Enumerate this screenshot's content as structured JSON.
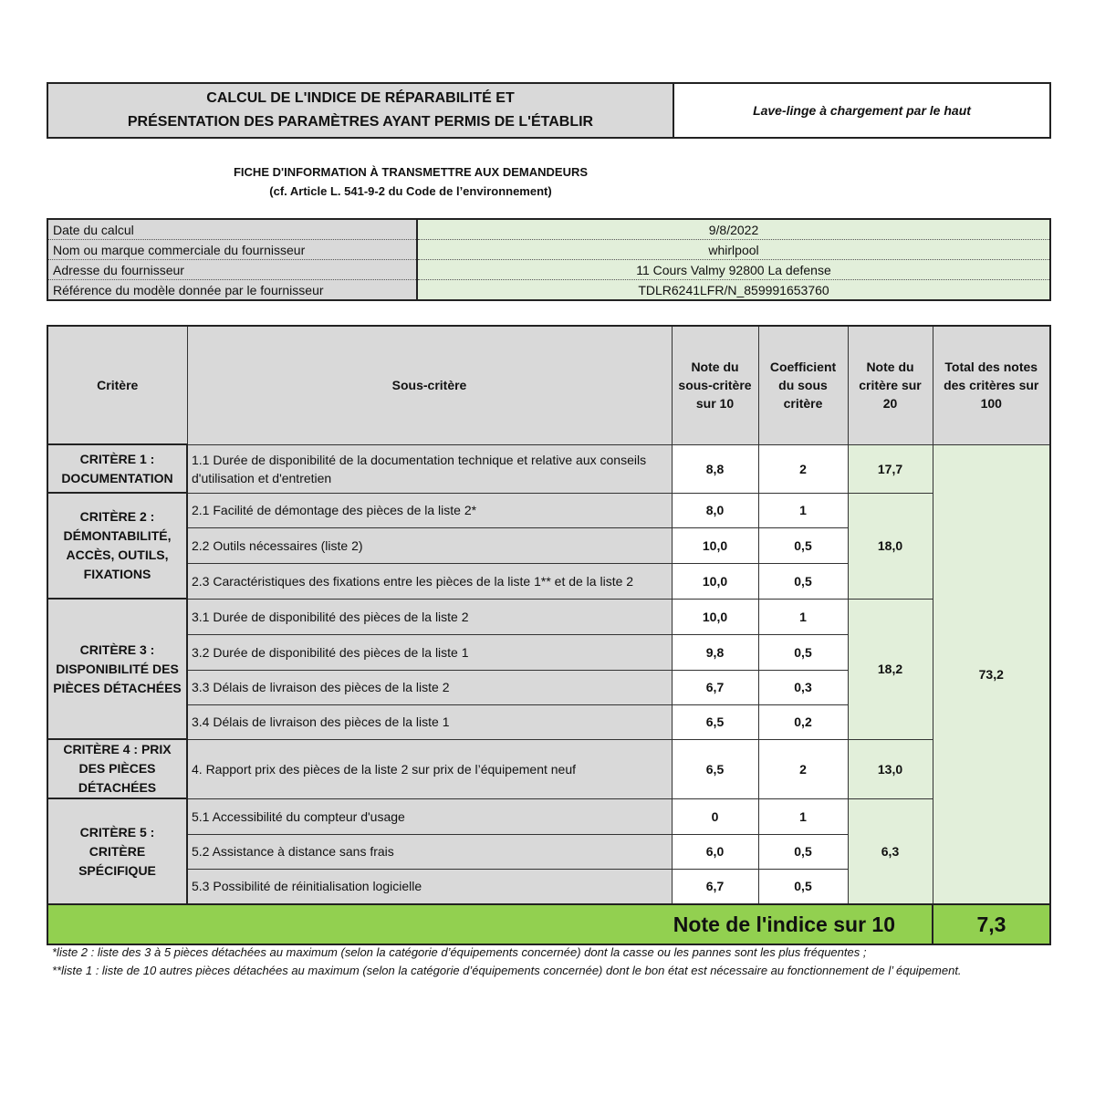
{
  "header": {
    "title_line1": "CALCUL DE L'INDICE DE RÉPARABILITÉ ET",
    "title_line2": "PRÉSENTATION DES PARAMÈTRES AYANT PERMIS DE L'ÉTABLIR",
    "product": "Lave-linge à chargement par le haut"
  },
  "subtitle": {
    "line1": "FICHE D'INFORMATION À TRANSMETTRE AUX DEMANDEURS",
    "line2": "(cf. Article L. 541-9-2 du Code de l’environnement)"
  },
  "info": [
    {
      "label": "Date du calcul",
      "value": "9/8/2022"
    },
    {
      "label": "Nom ou marque commerciale du fournisseur",
      "value": "whirlpool"
    },
    {
      "label": "Adresse du fournisseur",
      "value": "11 Cours Valmy 92800 La defense"
    },
    {
      "label": "Référence du modèle donnée par le fournisseur",
      "value": "TDLR6241LFR/N_859991653760"
    }
  ],
  "columns": [
    "Critère",
    "Sous-critère",
    "Note du sous-critère sur 10",
    "Coefficient du sous critère",
    "Note du critère sur 20",
    "Total des notes des critères sur 100"
  ],
  "criteria": [
    {
      "name": "CRITÈRE 1 : DOCUMENTATION",
      "score": "17,7",
      "subs": [
        {
          "label": "1.1 Durée de disponibilité de la documentation technique et relative aux conseils d'utilisation et d'entretien",
          "note": "8,8",
          "coef": "2"
        }
      ]
    },
    {
      "name": "CRITÈRE 2 : DÉMONTABILITÉ, ACCÈS, OUTILS, FIXATIONS",
      "score": "18,0",
      "subs": [
        {
          "label": "2.1 Facilité de démontage des pièces de la liste 2*",
          "note": "8,0",
          "coef": "1"
        },
        {
          "label": "2.2 Outils nécessaires (liste 2)",
          "note": "10,0",
          "coef": "0,5"
        },
        {
          "label": "2.3 Caractéristiques des fixations entre les pièces de la liste 1** et de la liste 2",
          "note": "10,0",
          "coef": "0,5"
        }
      ]
    },
    {
      "name": "CRITÈRE 3 : DISPONIBILITÉ DES PIÈCES DÉTACHÉES",
      "score": "18,2",
      "subs": [
        {
          "label": "3.1 Durée de disponibilité des pièces de la liste 2",
          "note": "10,0",
          "coef": "1"
        },
        {
          "label": "3.2 Durée de disponibilité des pièces de la liste 1",
          "note": "9,8",
          "coef": "0,5"
        },
        {
          "label": "3.3 Délais de livraison des pièces de la liste 2",
          "note": "6,7",
          "coef": "0,3"
        },
        {
          "label": "3.4 Délais de livraison des pièces de la liste 1",
          "note": "6,5",
          "coef": "0,2"
        }
      ]
    },
    {
      "name": "CRITÈRE 4 : PRIX DES PIÈCES DÉTACHÉES",
      "score": "13,0",
      "subs": [
        {
          "label": "4. Rapport prix des pièces de la liste 2 sur prix de l’équipement neuf",
          "note": "6,5",
          "coef": "2"
        }
      ]
    },
    {
      "name": "CRITÈRE 5 : CRITÈRE SPÉCIFIQUE",
      "score": "6,3",
      "subs": [
        {
          "label": "5.1 Accessibilité du compteur d'usage",
          "note": "0",
          "coef": "1"
        },
        {
          "label": "5.2 Assistance à distance sans frais",
          "note": "6,0",
          "coef": "0,5"
        },
        {
          "label": "5.3 Possibilité de réinitialisation logicielle",
          "note": "6,7",
          "coef": "0,5"
        }
      ]
    }
  ],
  "total": "73,2",
  "index_label": "Note de l'indice sur 10",
  "index_value": "7,3",
  "notes": [
    "*liste 2 : liste des 3 à 5 pièces détachées au maximum (selon la catégorie d’équipements concernée) dont la casse ou les pannes sont les plus fréquentes ;",
    "**liste 1 : liste de 10 autres pièces détachées au maximum (selon la catégorie d’équipements concernée) dont le bon état est nécessaire au fonctionnement de l’ équipement."
  ],
  "colors": {
    "gray": "#d9d9d9",
    "light_green": "#e2efda",
    "green": "#92d050"
  }
}
